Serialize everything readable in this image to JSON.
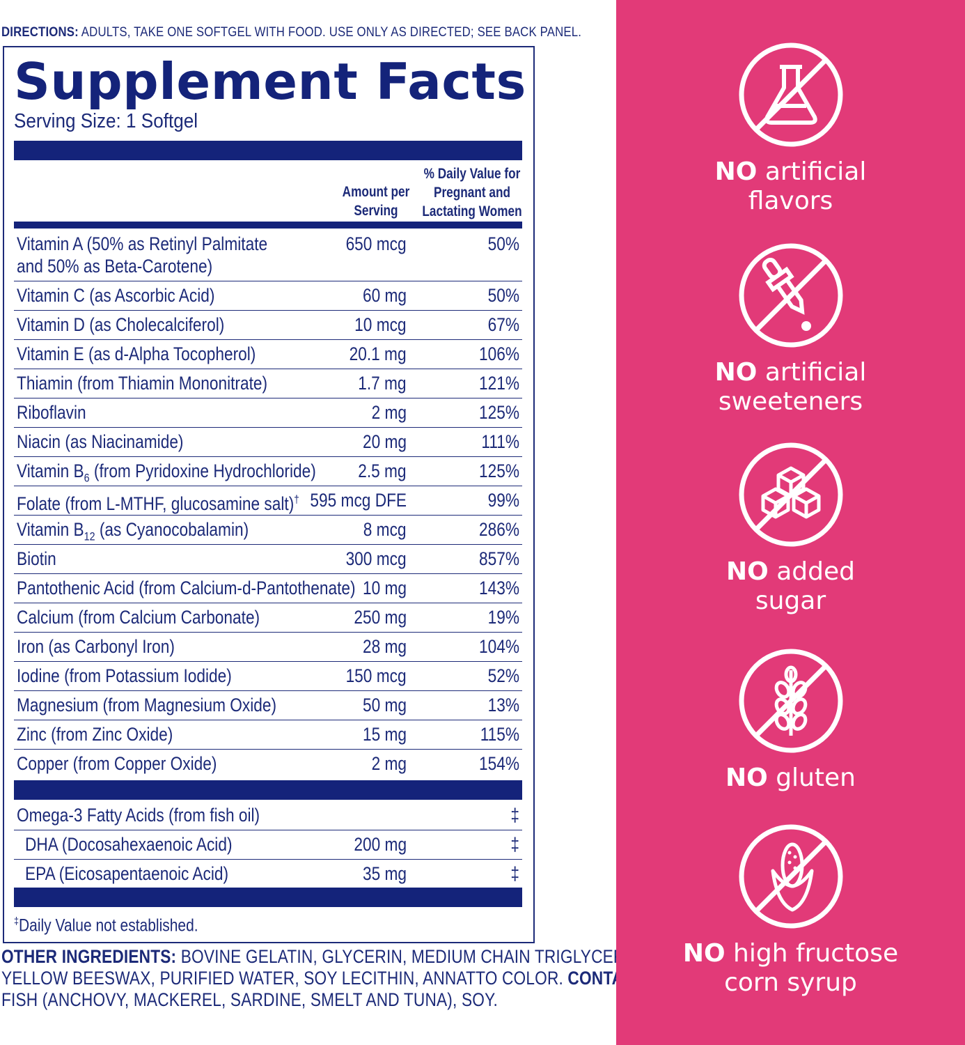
{
  "directions": {
    "label": "DIRECTIONS:",
    "text": " ADULTS, TAKE ONE SOFTGEL WITH FOOD. USE ONLY AS DIRECTED; SEE BACK PANEL."
  },
  "facts": {
    "title": "Supplement Facts",
    "serving": "Serving Size: 1 Softgel",
    "col_amount": [
      "Amount per",
      "Serving"
    ],
    "col_dv": [
      "% Daily Value for",
      "Pregnant and",
      "Lactating Women"
    ],
    "rows": [
      {
        "name": "Vitamin A (50% as Retinyl Palmitate",
        "name2": " and 50% as Beta-Carotene)",
        "amount": "650 mcg",
        "dv": "50%"
      },
      {
        "name": "Vitamin C (as Ascorbic Acid)",
        "amount": "60 mg",
        "dv": "50%"
      },
      {
        "name": "Vitamin D (as Cholecalciferol)",
        "amount": "10 mcg",
        "dv": "67%"
      },
      {
        "name": "Vitamin E (as d-Alpha Tocopherol)",
        "amount": "20.1 mg",
        "dv": "106%"
      },
      {
        "name": "Thiamin (from Thiamin Mononitrate)",
        "amount": "1.7 mg",
        "dv": "121%"
      },
      {
        "name": "Riboflavin",
        "amount": "2 mg",
        "dv": "125%"
      },
      {
        "name": "Niacin (as Niacinamide)",
        "amount": "20 mg",
        "dv": "111%"
      },
      {
        "name": "Vitamin B",
        "sub": "6",
        "rest": " (from Pyridoxine Hydrochloride)",
        "amount": "2.5 mg",
        "dv": "125%"
      },
      {
        "name": "Folate (from L-MTHF, glucosamine salt)",
        "sup": "†",
        "amount": "595 mcg DFE",
        "dv": "99%"
      },
      {
        "name": "Vitamin B",
        "sub": "12",
        "rest": " (as Cyanocobalamin)",
        "amount": "8 mcg",
        "dv": "286%"
      },
      {
        "name": "Biotin",
        "amount": "300 mcg",
        "dv": "857%"
      },
      {
        "name": "Pantothenic Acid (from Calcium-d-Pantothenate)",
        "amount": "10 mg",
        "dv": "143%"
      },
      {
        "name": "Calcium (from Calcium Carbonate)",
        "amount": "250 mg",
        "dv": "19%"
      },
      {
        "name": "Iron (as Carbonyl Iron)",
        "amount": "28 mg",
        "dv": "104%"
      },
      {
        "name": "Iodine (from Potassium Iodide)",
        "amount": "150 mcg",
        "dv": "52%"
      },
      {
        "name": "Magnesium (from Magnesium Oxide)",
        "amount": "50 mg",
        "dv": "13%"
      },
      {
        "name": "Zinc (from Zinc Oxide)",
        "amount": "15 mg",
        "dv": "115%"
      },
      {
        "name": "Copper (from Copper Oxide)",
        "amount": "2 mg",
        "dv": "154%"
      }
    ],
    "omega": [
      {
        "name": "Omega-3 Fatty Acids (from fish oil)",
        "amount": "",
        "dv": "‡"
      },
      {
        "name": "DHA (Docosahexaenoic Acid)",
        "amount": "200 mg",
        "dv": "‡"
      },
      {
        "name": "EPA (Eicosapentaenoic Acid)",
        "amount": "35 mg",
        "dv": "‡"
      }
    ],
    "footnote_mark": "‡",
    "footnote": "Daily Value not established."
  },
  "other": {
    "label": "OTHER INGREDIENTS:",
    "line1": " BOVINE GELATIN, GLYCERIN, MEDIUM CHAIN TRIGLYCERIDES,",
    "line2": "YELLOW BEESWAX, PURIFIED WATER, SOY LECITHIN, ANNATTO COLOR. ",
    "contains_label": "CONTAINS:",
    "line3": "FISH (ANCHOVY, MACKEREL, SARDINE, SMELT AND TUNA), SOY."
  },
  "claims": [
    {
      "icon": "flask-icon",
      "no": "NO",
      "line1": " artificial",
      "line2": "flavors"
    },
    {
      "icon": "dropper-icon",
      "no": "NO",
      "line1": " artificial",
      "line2": "sweeteners"
    },
    {
      "icon": "sugar-cubes-icon",
      "no": "NO",
      "line1": " added",
      "line2": "sugar"
    },
    {
      "icon": "wheat-icon",
      "no": "NO",
      "line1": " gluten",
      "line2": ""
    },
    {
      "icon": "corn-icon",
      "no": "NO",
      "line1": " high fructose",
      "line2": "corn syrup"
    }
  ],
  "colors": {
    "navy": "#14237a",
    "pink": "#e23a78"
  }
}
